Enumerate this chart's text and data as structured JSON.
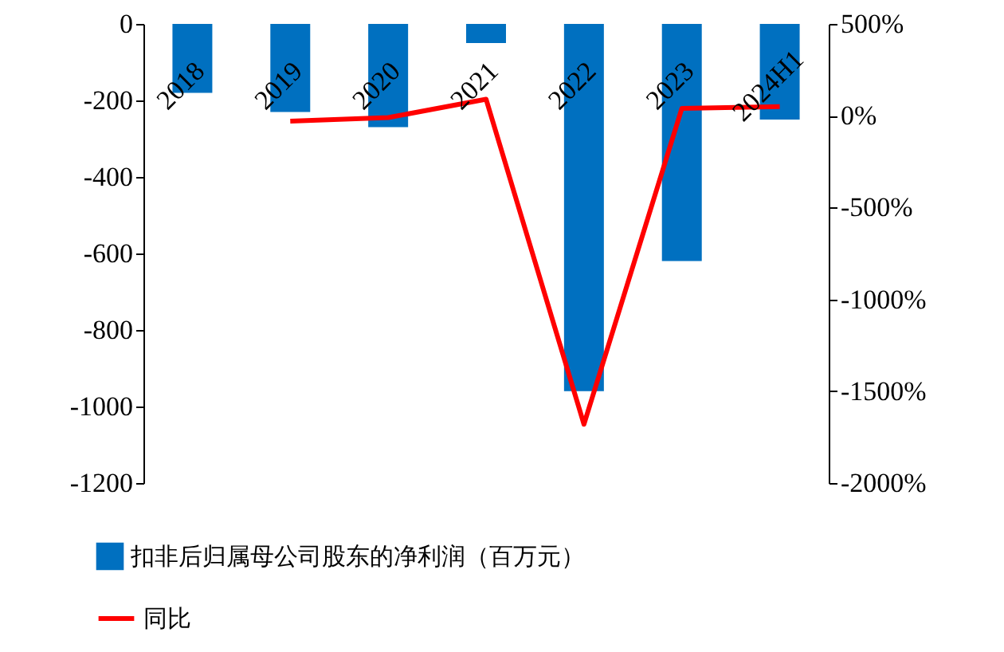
{
  "chart_data": {
    "type": "bar",
    "categories": [
      "2018",
      "2019",
      "2020",
      "2021",
      "2022",
      "2023",
      "2024H1"
    ],
    "series": [
      {
        "name": "扣非后归属母公司股东的净利润（百万元）",
        "color": "#0070c0",
        "values": [
          -180,
          -230,
          -270,
          -50,
          -960,
          -620,
          -250
        ]
      },
      {
        "type": "line",
        "axis": "y2",
        "name": "同比",
        "color": "#ff0000",
        "values": [
          null,
          -30,
          -10,
          90,
          -1680,
          40,
          50
        ]
      }
    ],
    "ylim": [
      -1200,
      0
    ],
    "yticks": [
      -1200,
      -1000,
      -800,
      -600,
      -400,
      -200,
      0
    ],
    "y2lim": [
      -2000,
      500
    ],
    "y2ticks": [
      {
        "value": -2000,
        "label": "-2000%"
      },
      {
        "value": -1500,
        "label": "-1500%"
      },
      {
        "value": -1000,
        "label": "-1000%"
      },
      {
        "value": -500,
        "label": "-500%"
      },
      {
        "value": 0,
        "label": "0%"
      },
      {
        "value": 500,
        "label": "500%"
      }
    ],
    "legend": "bottom",
    "grid": false
  }
}
